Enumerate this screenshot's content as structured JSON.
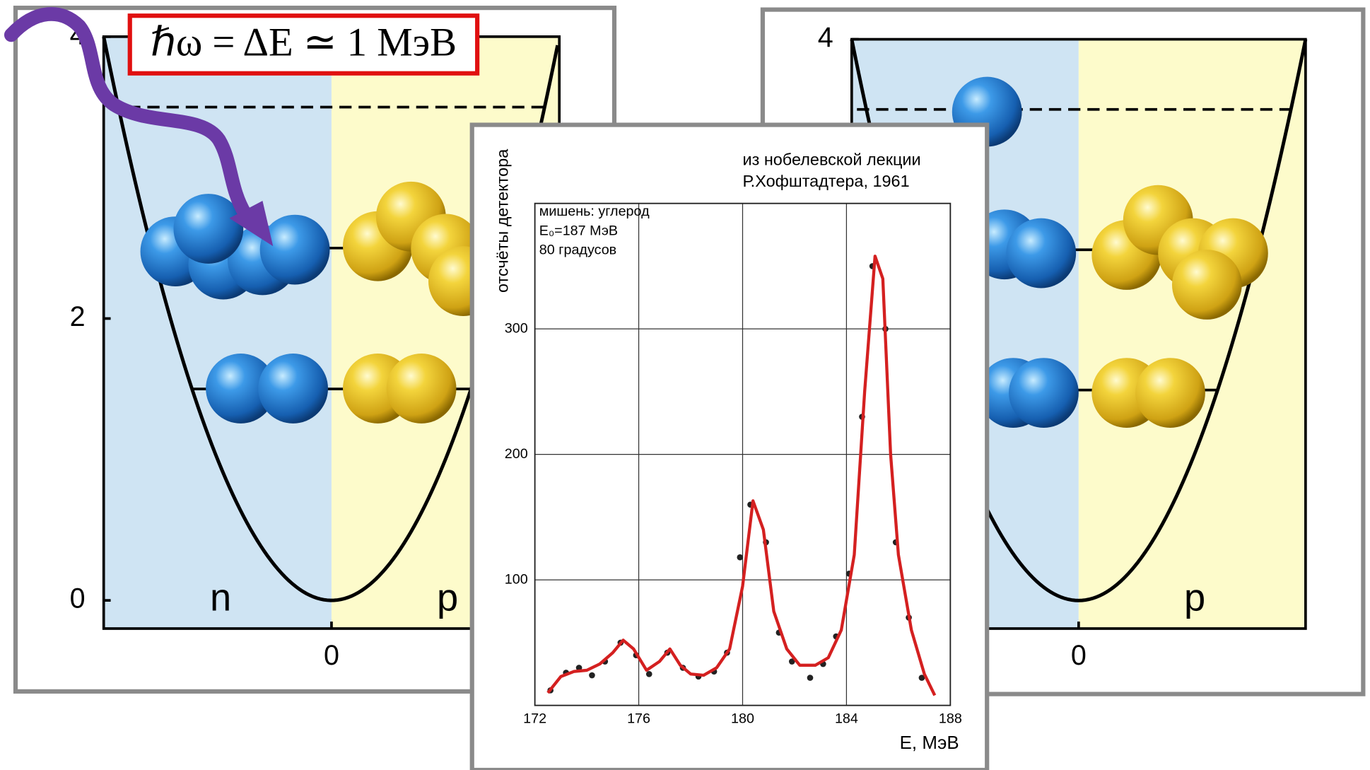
{
  "left_panel": {
    "ylim": [
      -0.2,
      4
    ],
    "yticks": [
      0,
      2,
      4
    ],
    "xlim": [
      -1,
      1
    ],
    "xticks": [
      0
    ],
    "labels": [
      "n",
      "p"
    ],
    "formula": "ℏω = ΔE ≃ 1 МэВ"
  },
  "right_panel": {
    "ylim": [
      -0.2,
      4
    ],
    "yticks": [
      4
    ],
    "xlim": [
      -1,
      1
    ],
    "xticks": [
      0
    ],
    "labels": [
      "p"
    ]
  },
  "chart_data": {
    "type": "line",
    "title": [
      "из нобелевской лекции",
      "Р.Хофштадтера, 1961"
    ],
    "annotations": [
      "мишень: углерод",
      "E₀=187 МэВ",
      "80 градусов"
    ],
    "x_label": "E, МэВ",
    "y_label": "отсчёты детектора",
    "x": [
      172.5,
      173,
      173.5,
      174,
      174.5,
      175,
      175.4,
      175.8,
      176.3,
      176.8,
      177.2,
      177.6,
      178,
      178.5,
      179,
      179.5,
      180,
      180.4,
      180.8,
      181.2,
      181.7,
      182.2,
      182.8,
      183.3,
      183.8,
      184.3,
      184.7,
      185.1,
      185.4,
      185.7,
      186,
      186.5,
      187,
      187.4
    ],
    "series": [
      {
        "color": "#d42020",
        "values": [
          10,
          23,
          27,
          28,
          33,
          42,
          52,
          45,
          28,
          35,
          45,
          32,
          25,
          24,
          30,
          45,
          95,
          163,
          140,
          75,
          45,
          32,
          32,
          38,
          60,
          120,
          250,
          358,
          340,
          200,
          120,
          60,
          25,
          8
        ]
      }
    ],
    "markers": {
      "color": "#222",
      "x": [
        172.6,
        173.2,
        173.7,
        174.2,
        174.7,
        175.3,
        175.9,
        176.4,
        177.1,
        177.7,
        178.3,
        178.9,
        179.4,
        179.9,
        180.3,
        180.9,
        181.4,
        181.9,
        182.6,
        183.1,
        183.6,
        184.1,
        184.6,
        185,
        185.5,
        185.9,
        186.4,
        186.9
      ],
      "values": [
        12,
        26,
        30,
        24,
        35,
        50,
        40,
        25,
        42,
        30,
        23,
        27,
        42,
        118,
        160,
        130,
        58,
        35,
        22,
        33,
        55,
        105,
        230,
        350,
        300,
        130,
        70,
        22
      ]
    },
    "xlim": [
      172,
      188
    ],
    "xticks": [
      172,
      176,
      180,
      184,
      188
    ],
    "ylim": [
      0,
      400
    ],
    "yticks": [
      100,
      200,
      300
    ],
    "grid": true
  }
}
